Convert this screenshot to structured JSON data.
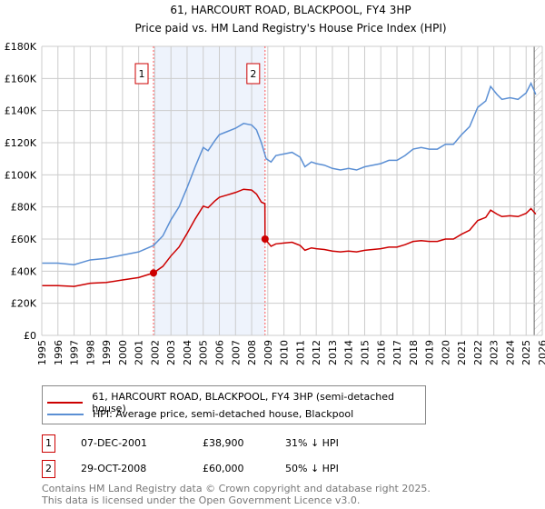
{
  "chart_data": {
    "type": "line",
    "title": "61, HARCOURT ROAD, BLACKPOOL, FY4 3HP",
    "subtitle": "Price paid vs. HM Land Registry's House Price Index (HPI)",
    "xlim": [
      1995,
      2026
    ],
    "ylim": [
      0,
      180000
    ],
    "y_ticks": [
      0,
      20000,
      40000,
      60000,
      80000,
      100000,
      120000,
      140000,
      160000,
      180000
    ],
    "y_tick_labels": [
      "£0",
      "£20K",
      "£40K",
      "£60K",
      "£80K",
      "£100K",
      "£120K",
      "£140K",
      "£160K",
      "£180K"
    ],
    "x_ticks": [
      1995,
      1996,
      1997,
      1998,
      1999,
      2000,
      2001,
      2002,
      2003,
      2004,
      2005,
      2006,
      2007,
      2008,
      2009,
      2010,
      2011,
      2012,
      2013,
      2014,
      2015,
      2016,
      2017,
      2018,
      2019,
      2020,
      2021,
      2022,
      2023,
      2024,
      2025,
      2026
    ],
    "grid": true,
    "series": [
      {
        "name": "61, HARCOURT ROAD, BLACKPOOL, FY4 3HP (semi-detached house)",
        "color": "#cc0000",
        "x": [
          1995,
          1996,
          1997,
          1998,
          1999,
          2000,
          2001,
          2001.92,
          2002.5,
          2003,
          2003.5,
          2004,
          2004.5,
          2005,
          2005.3,
          2005.7,
          2006,
          2006.5,
          2007,
          2007.5,
          2008,
          2008.3,
          2008.6,
          2008.82,
          2008.83,
          2009.2,
          2009.5,
          2010,
          2010.5,
          2011,
          2011.3,
          2011.7,
          2012,
          2012.5,
          2013,
          2013.5,
          2014,
          2014.5,
          2015,
          2015.5,
          2016,
          2016.5,
          2017,
          2017.5,
          2018,
          2018.5,
          2019,
          2019.5,
          2020,
          2020.5,
          2021,
          2021.5,
          2022,
          2022.5,
          2022.8,
          2023.2,
          2023.5,
          2024,
          2024.5,
          2025,
          2025.3,
          2025.6
        ],
        "y": [
          31000,
          31000,
          30500,
          32500,
          33000,
          34500,
          36000,
          38900,
          43000,
          49500,
          55000,
          63500,
          72500,
          80500,
          79500,
          83500,
          86000,
          87500,
          89000,
          91000,
          90500,
          88000,
          83000,
          82000,
          60000,
          55500,
          57000,
          57500,
          58000,
          56000,
          53000,
          54500,
          54000,
          53500,
          52500,
          52000,
          52500,
          52000,
          53000,
          53500,
          54000,
          55000,
          55000,
          56500,
          58500,
          59000,
          58500,
          58500,
          60000,
          60000,
          63000,
          65500,
          71500,
          73500,
          78000,
          75500,
          74000,
          74500,
          74000,
          76000,
          79000,
          75500
        ]
      },
      {
        "name": "HPI: Average price, semi-detached house, Blackpool",
        "color": "#5b8fd4",
        "x": [
          1995,
          1996,
          1997,
          1998,
          1999,
          2000,
          2001,
          2001.92,
          2002.5,
          2003,
          2003.5,
          2004,
          2004.5,
          2005,
          2005.3,
          2005.7,
          2006,
          2006.5,
          2007,
          2007.5,
          2008,
          2008.3,
          2008.6,
          2008.9,
          2009.2,
          2009.5,
          2010,
          2010.5,
          2011,
          2011.3,
          2011.7,
          2012,
          2012.5,
          2013,
          2013.5,
          2014,
          2014.5,
          2015,
          2015.5,
          2016,
          2016.5,
          2017,
          2017.5,
          2018,
          2018.5,
          2019,
          2019.5,
          2020,
          2020.5,
          2021,
          2021.5,
          2022,
          2022.5,
          2022.8,
          2023.2,
          2023.5,
          2024,
          2024.5,
          2025,
          2025.3,
          2025.6
        ],
        "y": [
          45000,
          45000,
          44000,
          47000,
          48000,
          50000,
          52000,
          56000,
          62000,
          72000,
          80000,
          92000,
          105000,
          117000,
          115000,
          121000,
          125000,
          127000,
          129000,
          132000,
          131000,
          128000,
          120000,
          110000,
          108000,
          112000,
          113000,
          114000,
          111000,
          105000,
          108000,
          107000,
          106000,
          104000,
          103000,
          104000,
          103000,
          105000,
          106000,
          107000,
          109000,
          109000,
          112000,
          116000,
          117000,
          116000,
          116000,
          119000,
          119000,
          125000,
          130000,
          142000,
          146000,
          155000,
          150000,
          147000,
          148000,
          147000,
          151000,
          157000,
          150000
        ]
      }
    ],
    "shaded_range": [
      2001.92,
      2008.83
    ],
    "hatched_from": 2025.5,
    "annotations": [
      {
        "label": "1",
        "date": "07-DEC-2001",
        "x": 2001.92,
        "price": "£38,900",
        "value": 38900,
        "hpi": "31% ↓ HPI"
      },
      {
        "label": "2",
        "date": "29-OCT-2008",
        "x": 2008.83,
        "price": "£60,000",
        "value": 60000,
        "hpi": "50% ↓ HPI"
      }
    ]
  },
  "footer": {
    "line1": "Contains HM Land Registry data © Crown copyright and database right 2025.",
    "line2": "This data is licensed under the Open Government Licence v3.0."
  }
}
